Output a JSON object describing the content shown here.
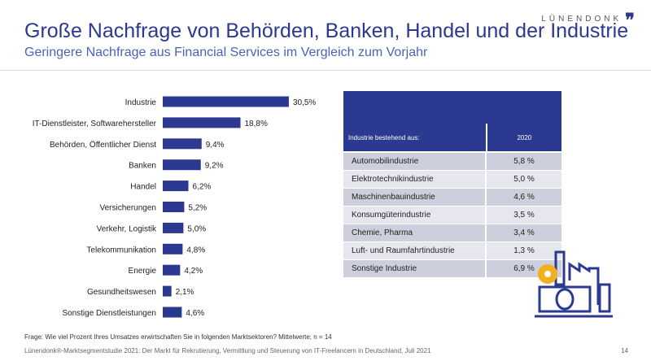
{
  "logo": "LÜNENDONK",
  "title": "Große Nachfrage von Behörden, Banken, Handel und der Industrie",
  "subtitle": "Geringere Nachfrage aus Financial Services im Vergleich zum Vorjahr",
  "colors": {
    "bar": "#2b3990",
    "accent_gear": "#f2b01e"
  },
  "chart_data": {
    "type": "bar",
    "orientation": "horizontal",
    "categories": [
      "Industrie",
      "IT-Dienstleister, Softwarehersteller",
      "Behörden, Öffentlicher Dienst",
      "Banken",
      "Handel",
      "Versicherungen",
      "Verkehr, Logistik",
      "Telekommunikation",
      "Energie",
      "Gesundheitswesen",
      "Sonstige Dienstleistungen"
    ],
    "values": [
      30.5,
      18.8,
      9.4,
      9.2,
      6.2,
      5.2,
      5.0,
      4.8,
      4.2,
      2.1,
      4.6
    ],
    "labels": [
      "30,5%",
      "18,8%",
      "9,4%",
      "9,2%",
      "6,2%",
      "5,2%",
      "5,0%",
      "4,8%",
      "4,2%",
      "2,1%",
      "4,6%"
    ],
    "unit": "%"
  },
  "table": {
    "header": [
      "Industrie bestehend aus:",
      "2020"
    ],
    "rows": [
      [
        "Automobilindustrie",
        "5,8 %"
      ],
      [
        "Elektrotechnikindustrie",
        "5,0 %"
      ],
      [
        "Maschinenbauindustrie",
        "4,6 %"
      ],
      [
        "Konsumgüterindustrie",
        "3,5 %"
      ],
      [
        "Chemie, Pharma",
        "3,4 %"
      ],
      [
        "Luft- und Raumfahrtindustrie",
        "1,3 %"
      ],
      [
        "Sonstige Industrie",
        "6,9 %"
      ]
    ]
  },
  "footer": {
    "question": "Frage: Wie viel Prozent Ihres Umsatzes erwirtschaften Sie in folgenden Marktsektoren? Mittelwerte; n = 14",
    "source": "Lünendonk®-Marktsegmentstudie 2021: Der Markt für Rekrutierung, Vermittlung und Steuerung von IT-Freelancern in Deutschland, Juli 2021",
    "page": "14"
  }
}
